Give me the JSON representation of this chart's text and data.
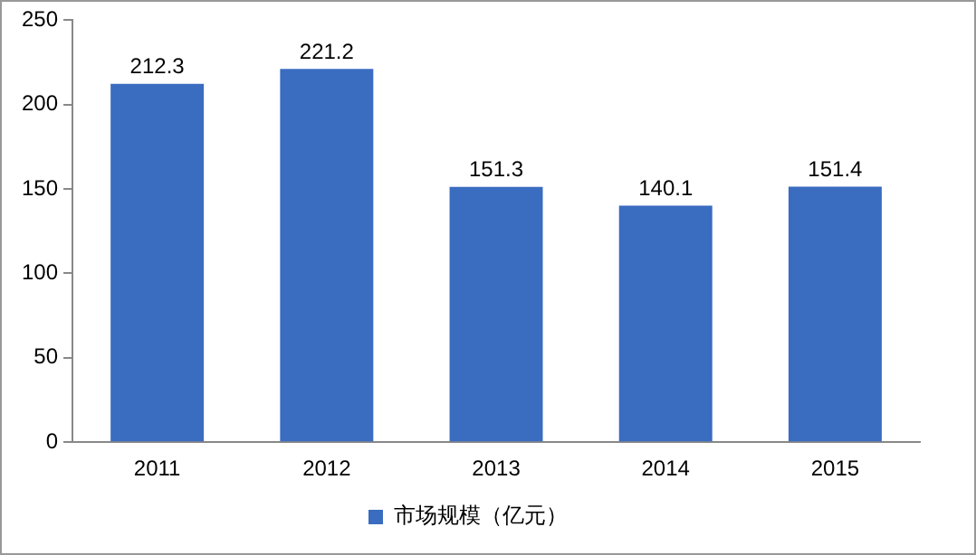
{
  "chart_data": {
    "type": "bar",
    "categories": [
      "2011",
      "2012",
      "2013",
      "2014",
      "2015"
    ],
    "series": [
      {
        "name": "市场规模（亿元）",
        "color": "#3a6cc0",
        "values": [
          212.3,
          221.2,
          151.3,
          140.1,
          151.4
        ]
      }
    ],
    "ylim": [
      0,
      250
    ],
    "yticks": [
      0,
      50,
      100,
      150,
      200,
      250
    ],
    "grid": false,
    "legend": "bottom",
    "data_labels": true
  }
}
